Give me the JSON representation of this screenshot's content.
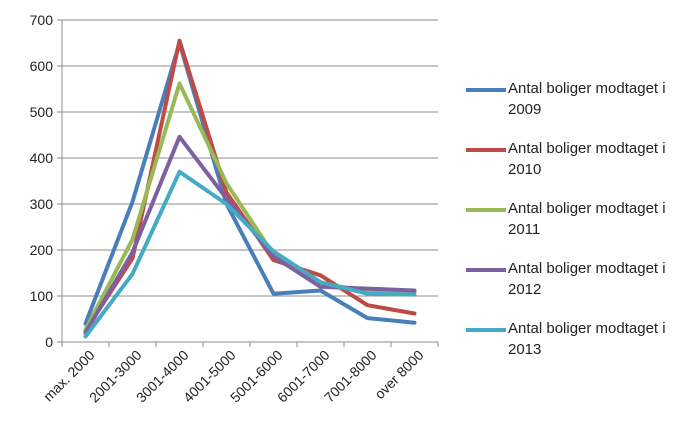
{
  "chart_data": {
    "type": "line",
    "title": "",
    "xlabel": "",
    "ylabel": "",
    "ylim": [
      0,
      700
    ],
    "yticks": [
      0,
      100,
      200,
      300,
      400,
      500,
      600,
      700
    ],
    "grid": "horizontal",
    "legend_position": "right",
    "categories": [
      "max. 2000",
      "2001-3000",
      "3001-4000",
      "4001-5000",
      "5001-6000",
      "6001-7000",
      "7001-8000",
      "over 8000"
    ],
    "series": [
      {
        "name": "Antal boliger modtaget i 2009",
        "color": "#4a7ebb",
        "values": [
          40,
          305,
          650,
          300,
          105,
          112,
          52,
          42
        ]
      },
      {
        "name": "Antal boliger modtaget i 2010",
        "color": "#be4b48",
        "values": [
          25,
          182,
          655,
          325,
          178,
          145,
          80,
          62
        ]
      },
      {
        "name": "Antal boliger modtaget i 2011",
        "color": "#98b954",
        "values": [
          27,
          223,
          562,
          345,
          190,
          128,
          110,
          108
        ]
      },
      {
        "name": "Antal boliger modtaget i 2012",
        "color": "#7d60a0",
        "values": [
          20,
          195,
          446,
          312,
          186,
          120,
          116,
          112
        ]
      },
      {
        "name": "Antal boliger modtaget i 2013",
        "color": "#46aac5",
        "values": [
          12,
          148,
          370,
          300,
          197,
          130,
          105,
          103
        ]
      }
    ]
  }
}
